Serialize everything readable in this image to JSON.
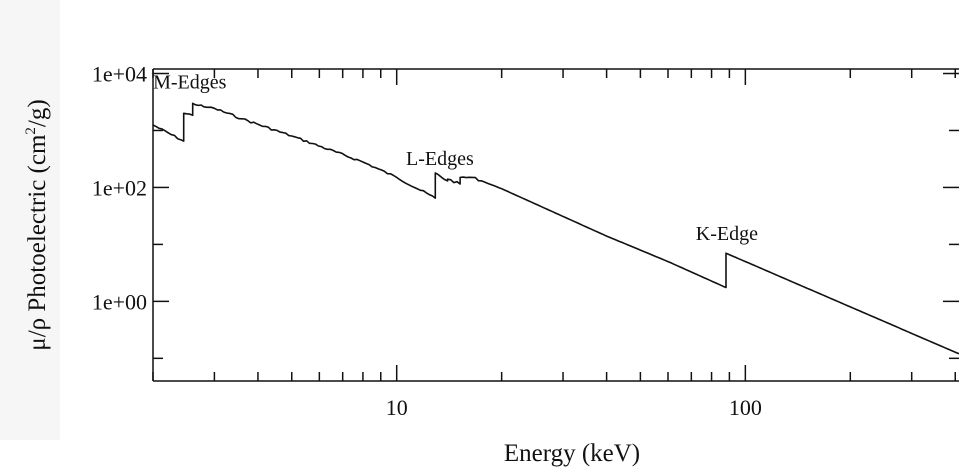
{
  "chart_data": {
    "type": "line",
    "xlabel": "Energy  (keV)",
    "ylabel_parts": {
      "main": "μ/ρ Photoelectric (cm",
      "sup": "2",
      "end": "/g)"
    },
    "x_scale": "log",
    "y_scale": "log",
    "xlim": [
      2.0,
      410
    ],
    "ylim": [
      0.04,
      12000
    ],
    "x_ticks": [
      {
        "value": 10,
        "label": "10"
      },
      {
        "value": 100,
        "label": "100"
      }
    ],
    "y_ticks": [
      {
        "value": 10000,
        "label": "1e+04"
      },
      {
        "value": 100,
        "label": "1e+02"
      },
      {
        "value": 1,
        "label": "1e+00"
      }
    ],
    "annotations": [
      {
        "text": "M-Edges",
        "x": 2.55,
        "y": 5500
      },
      {
        "text": "L-Edges",
        "x": 13.3,
        "y": 250
      },
      {
        "text": "K-Edge",
        "x": 88.5,
        "y": 12
      }
    ],
    "series": [
      {
        "points": [
          [
            2.0,
            1250
          ],
          [
            2.45,
            650
          ],
          [
            2.45,
            2000
          ],
          [
            2.6,
            1850
          ],
          [
            2.6,
            3000
          ],
          [
            2.8,
            2600
          ],
          [
            3.0,
            2450
          ],
          [
            3.6,
            1600
          ],
          [
            5.0,
            800
          ],
          [
            8.0,
            280
          ],
          [
            10.0,
            150
          ],
          [
            12.9,
            65
          ],
          [
            12.9,
            180
          ],
          [
            14.0,
            130
          ],
          [
            14.0,
            140
          ],
          [
            15.2,
            115
          ],
          [
            15.2,
            150
          ],
          [
            16.5,
            150
          ],
          [
            20.0,
            95
          ],
          [
            40.0,
            14
          ],
          [
            60.0,
            5
          ],
          [
            88.0,
            1.75
          ],
          [
            88.0,
            7
          ],
          [
            100.0,
            5
          ],
          [
            200.0,
            0.8
          ],
          [
            410.0,
            0.12
          ]
        ]
      }
    ],
    "grid": false
  },
  "colors": {
    "line": "#111111",
    "axis": "#111111",
    "background": "#ffffff",
    "shade": "#f6f6f6"
  }
}
